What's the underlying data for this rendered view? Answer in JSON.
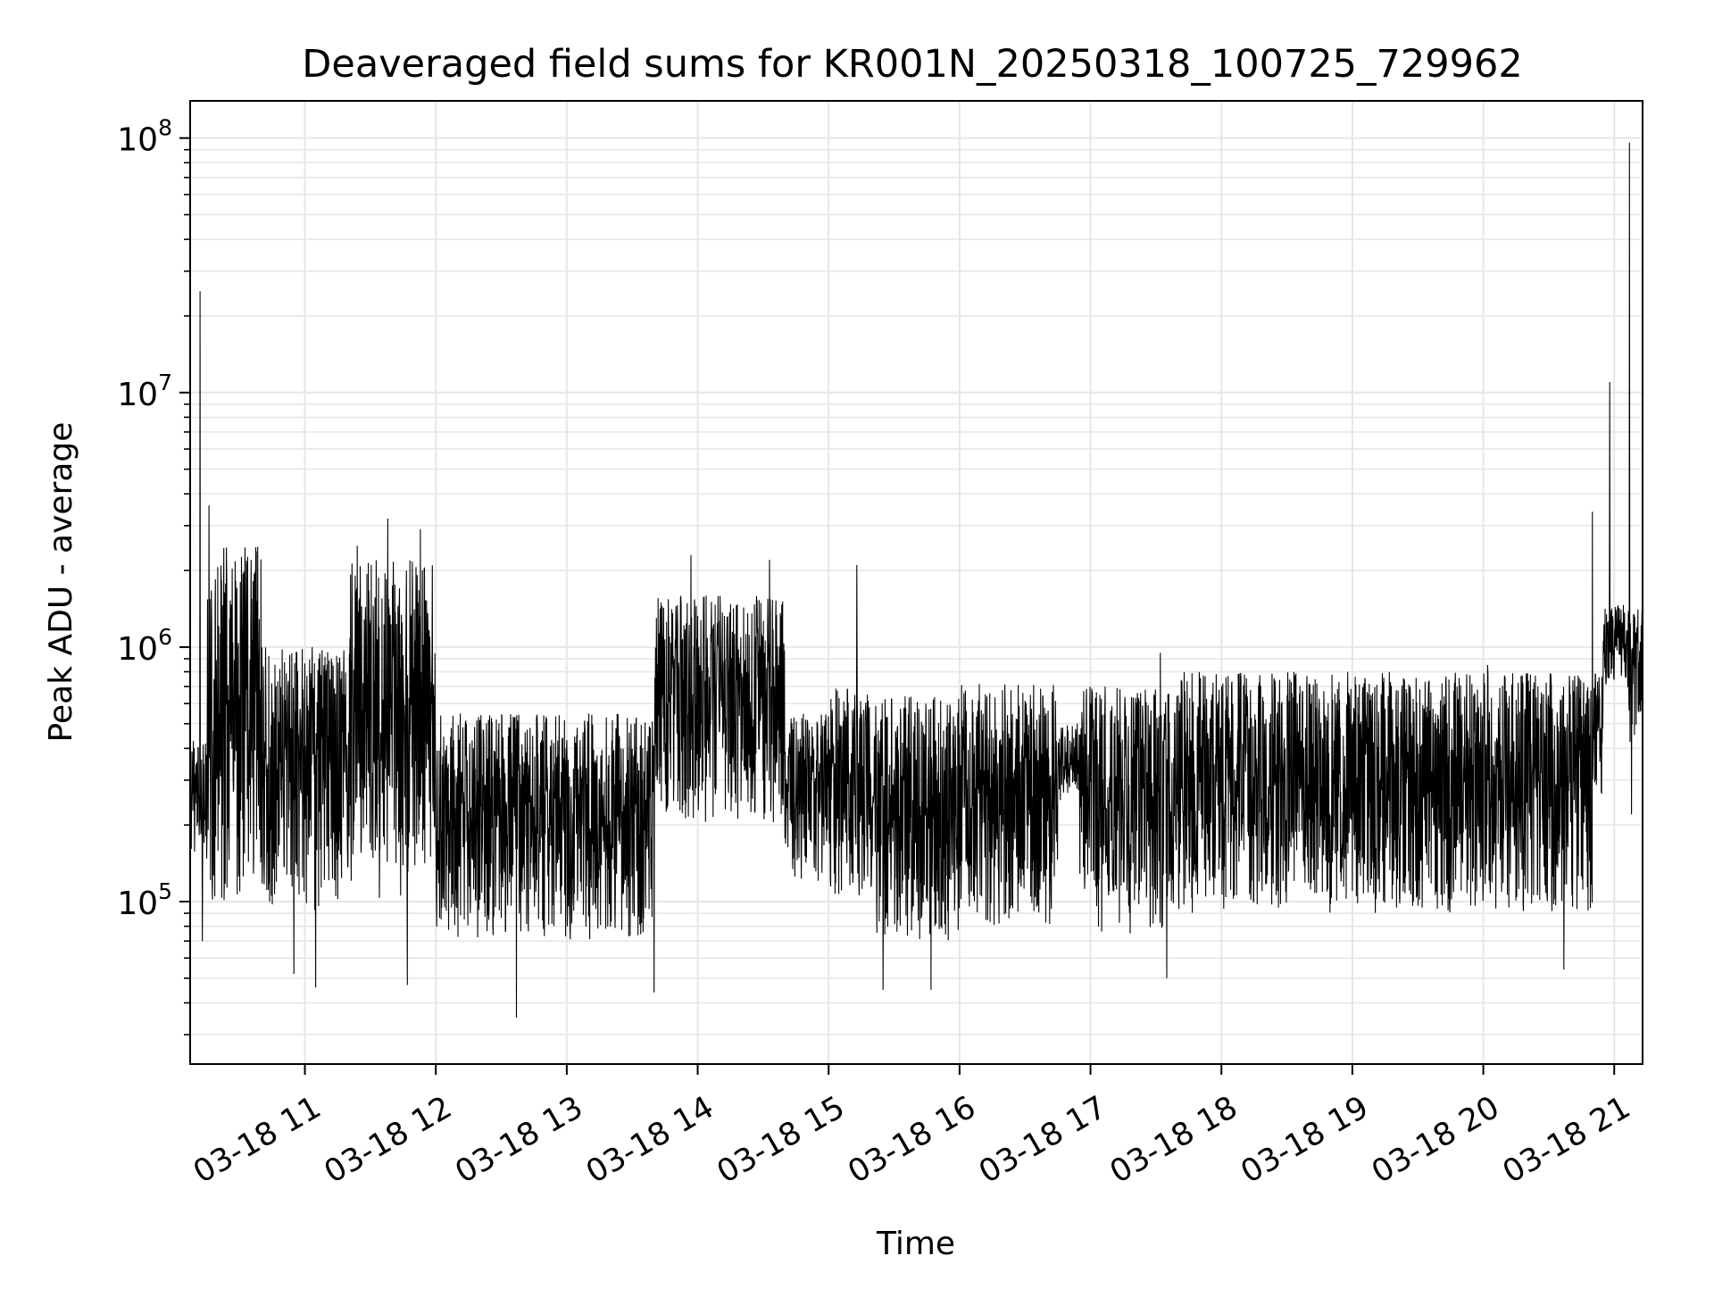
{
  "chart_data": {
    "type": "line",
    "title": "Deaveraged field sums for KR001N_20250318_100725_729962",
    "xlabel": "Time",
    "ylabel": "Peak ADU - average",
    "x_type": "datetime",
    "xlim": [
      "2025-03-18T10:07:25",
      "2025-03-18T21:13:00"
    ],
    "x_ticks": [
      {
        "x": "2025-03-18T11:00:00",
        "label": "03-18 11"
      },
      {
        "x": "2025-03-18T12:00:00",
        "label": "03-18 12"
      },
      {
        "x": "2025-03-18T13:00:00",
        "label": "03-18 13"
      },
      {
        "x": "2025-03-18T14:00:00",
        "label": "03-18 14"
      },
      {
        "x": "2025-03-18T15:00:00",
        "label": "03-18 15"
      },
      {
        "x": "2025-03-18T16:00:00",
        "label": "03-18 16"
      },
      {
        "x": "2025-03-18T17:00:00",
        "label": "03-18 17"
      },
      {
        "x": "2025-03-18T18:00:00",
        "label": "03-18 18"
      },
      {
        "x": "2025-03-18T19:00:00",
        "label": "03-18 19"
      },
      {
        "x": "2025-03-18T20:00:00",
        "label": "03-18 20"
      },
      {
        "x": "2025-03-18T21:00:00",
        "label": "03-18 21"
      }
    ],
    "y_scale": "log",
    "ylim": [
      23000,
      140000000
    ],
    "y_ticks": [
      {
        "value": 100000,
        "base": "10",
        "exp": "5"
      },
      {
        "value": 1000000,
        "base": "10",
        "exp": "6"
      },
      {
        "value": 10000000,
        "base": "10",
        "exp": "7"
      },
      {
        "value": 100000000,
        "base": "10",
        "exp": "8"
      }
    ],
    "grid": true,
    "legend": false,
    "series_color": "#000000",
    "grid_color": "#e6e6e6",
    "segments": [
      {
        "start": "2025-03-18T10:07:25",
        "end": "2025-03-18T10:15:00",
        "low": 150000,
        "high": 450000
      },
      {
        "start": "2025-03-18T10:15:00",
        "end": "2025-03-18T10:40:00",
        "low": 100000,
        "high": 2500000
      },
      {
        "start": "2025-03-18T10:40:00",
        "end": "2025-03-18T11:20:00",
        "low": 90000,
        "high": 1000000
      },
      {
        "start": "2025-03-18T11:20:00",
        "end": "2025-03-18T12:00:00",
        "low": 100000,
        "high": 2200000
      },
      {
        "start": "2025-03-18T12:00:00",
        "end": "2025-03-18T13:40:00",
        "low": 70000,
        "high": 550000
      },
      {
        "start": "2025-03-18T13:40:00",
        "end": "2025-03-18T14:40:00",
        "low": 200000,
        "high": 1600000
      },
      {
        "start": "2025-03-18T14:40:00",
        "end": "2025-03-18T15:00:00",
        "low": 120000,
        "high": 550000
      },
      {
        "start": "2025-03-18T15:00:00",
        "end": "2025-03-18T15:20:00",
        "low": 100000,
        "high": 700000
      },
      {
        "start": "2025-03-18T15:20:00",
        "end": "2025-03-18T16:00:00",
        "low": 70000,
        "high": 650000
      },
      {
        "start": "2025-03-18T16:00:00",
        "end": "2025-03-18T16:45:00",
        "low": 80000,
        "high": 720000
      },
      {
        "start": "2025-03-18T16:45:00",
        "end": "2025-03-18T16:55:00",
        "low": 250000,
        "high": 500000
      },
      {
        "start": "2025-03-18T16:55:00",
        "end": "2025-03-18T17:40:00",
        "low": 75000,
        "high": 700000
      },
      {
        "start": "2025-03-18T17:40:00",
        "end": "2025-03-18T20:50:00",
        "low": 90000,
        "high": 800000
      },
      {
        "start": "2025-03-18T20:50:00",
        "end": "2025-03-18T20:55:00",
        "low": 250000,
        "high": 800000
      },
      {
        "start": "2025-03-18T20:55:00",
        "end": "2025-03-18T21:05:00",
        "low": 700000,
        "high": 1500000
      },
      {
        "start": "2025-03-18T21:05:00",
        "end": "2025-03-18T21:13:00",
        "low": 400000,
        "high": 1500000
      }
    ],
    "peaks": [
      {
        "x": "2025-03-18T10:12:00",
        "y": 25000000
      },
      {
        "x": "2025-03-18T10:13:00",
        "y": 3800000
      },
      {
        "x": "2025-03-18T10:16:00",
        "y": 3600000
      },
      {
        "x": "2025-03-18T11:24:00",
        "y": 2500000
      },
      {
        "x": "2025-03-18T11:38:00",
        "y": 3200000
      },
      {
        "x": "2025-03-18T11:53:00",
        "y": 2900000
      },
      {
        "x": "2025-03-18T13:57:00",
        "y": 2300000
      },
      {
        "x": "2025-03-18T14:33:00",
        "y": 2200000
      },
      {
        "x": "2025-03-18T15:13:00",
        "y": 2100000
      },
      {
        "x": "2025-03-18T17:32:00",
        "y": 950000
      },
      {
        "x": "2025-03-18T20:02:00",
        "y": 850000
      },
      {
        "x": "2025-03-18T20:50:00",
        "y": 3400000
      },
      {
        "x": "2025-03-18T20:58:00",
        "y": 11000000
      },
      {
        "x": "2025-03-18T21:07:00",
        "y": 96000000
      }
    ],
    "troughs": [
      {
        "x": "2025-03-18T10:13:00",
        "y": 70000
      },
      {
        "x": "2025-03-18T10:55:00",
        "y": 52000
      },
      {
        "x": "2025-03-18T11:05:00",
        "y": 46000
      },
      {
        "x": "2025-03-18T11:47:00",
        "y": 47000
      },
      {
        "x": "2025-03-18T12:37:00",
        "y": 35000
      },
      {
        "x": "2025-03-18T13:40:00",
        "y": 44000
      },
      {
        "x": "2025-03-18T15:25:00",
        "y": 45000
      },
      {
        "x": "2025-03-18T15:47:00",
        "y": 45000
      },
      {
        "x": "2025-03-18T17:35:00",
        "y": 50000
      },
      {
        "x": "2025-03-18T20:37:00",
        "y": 54000
      },
      {
        "x": "2025-03-18T21:08:00",
        "y": 220000
      }
    ]
  }
}
